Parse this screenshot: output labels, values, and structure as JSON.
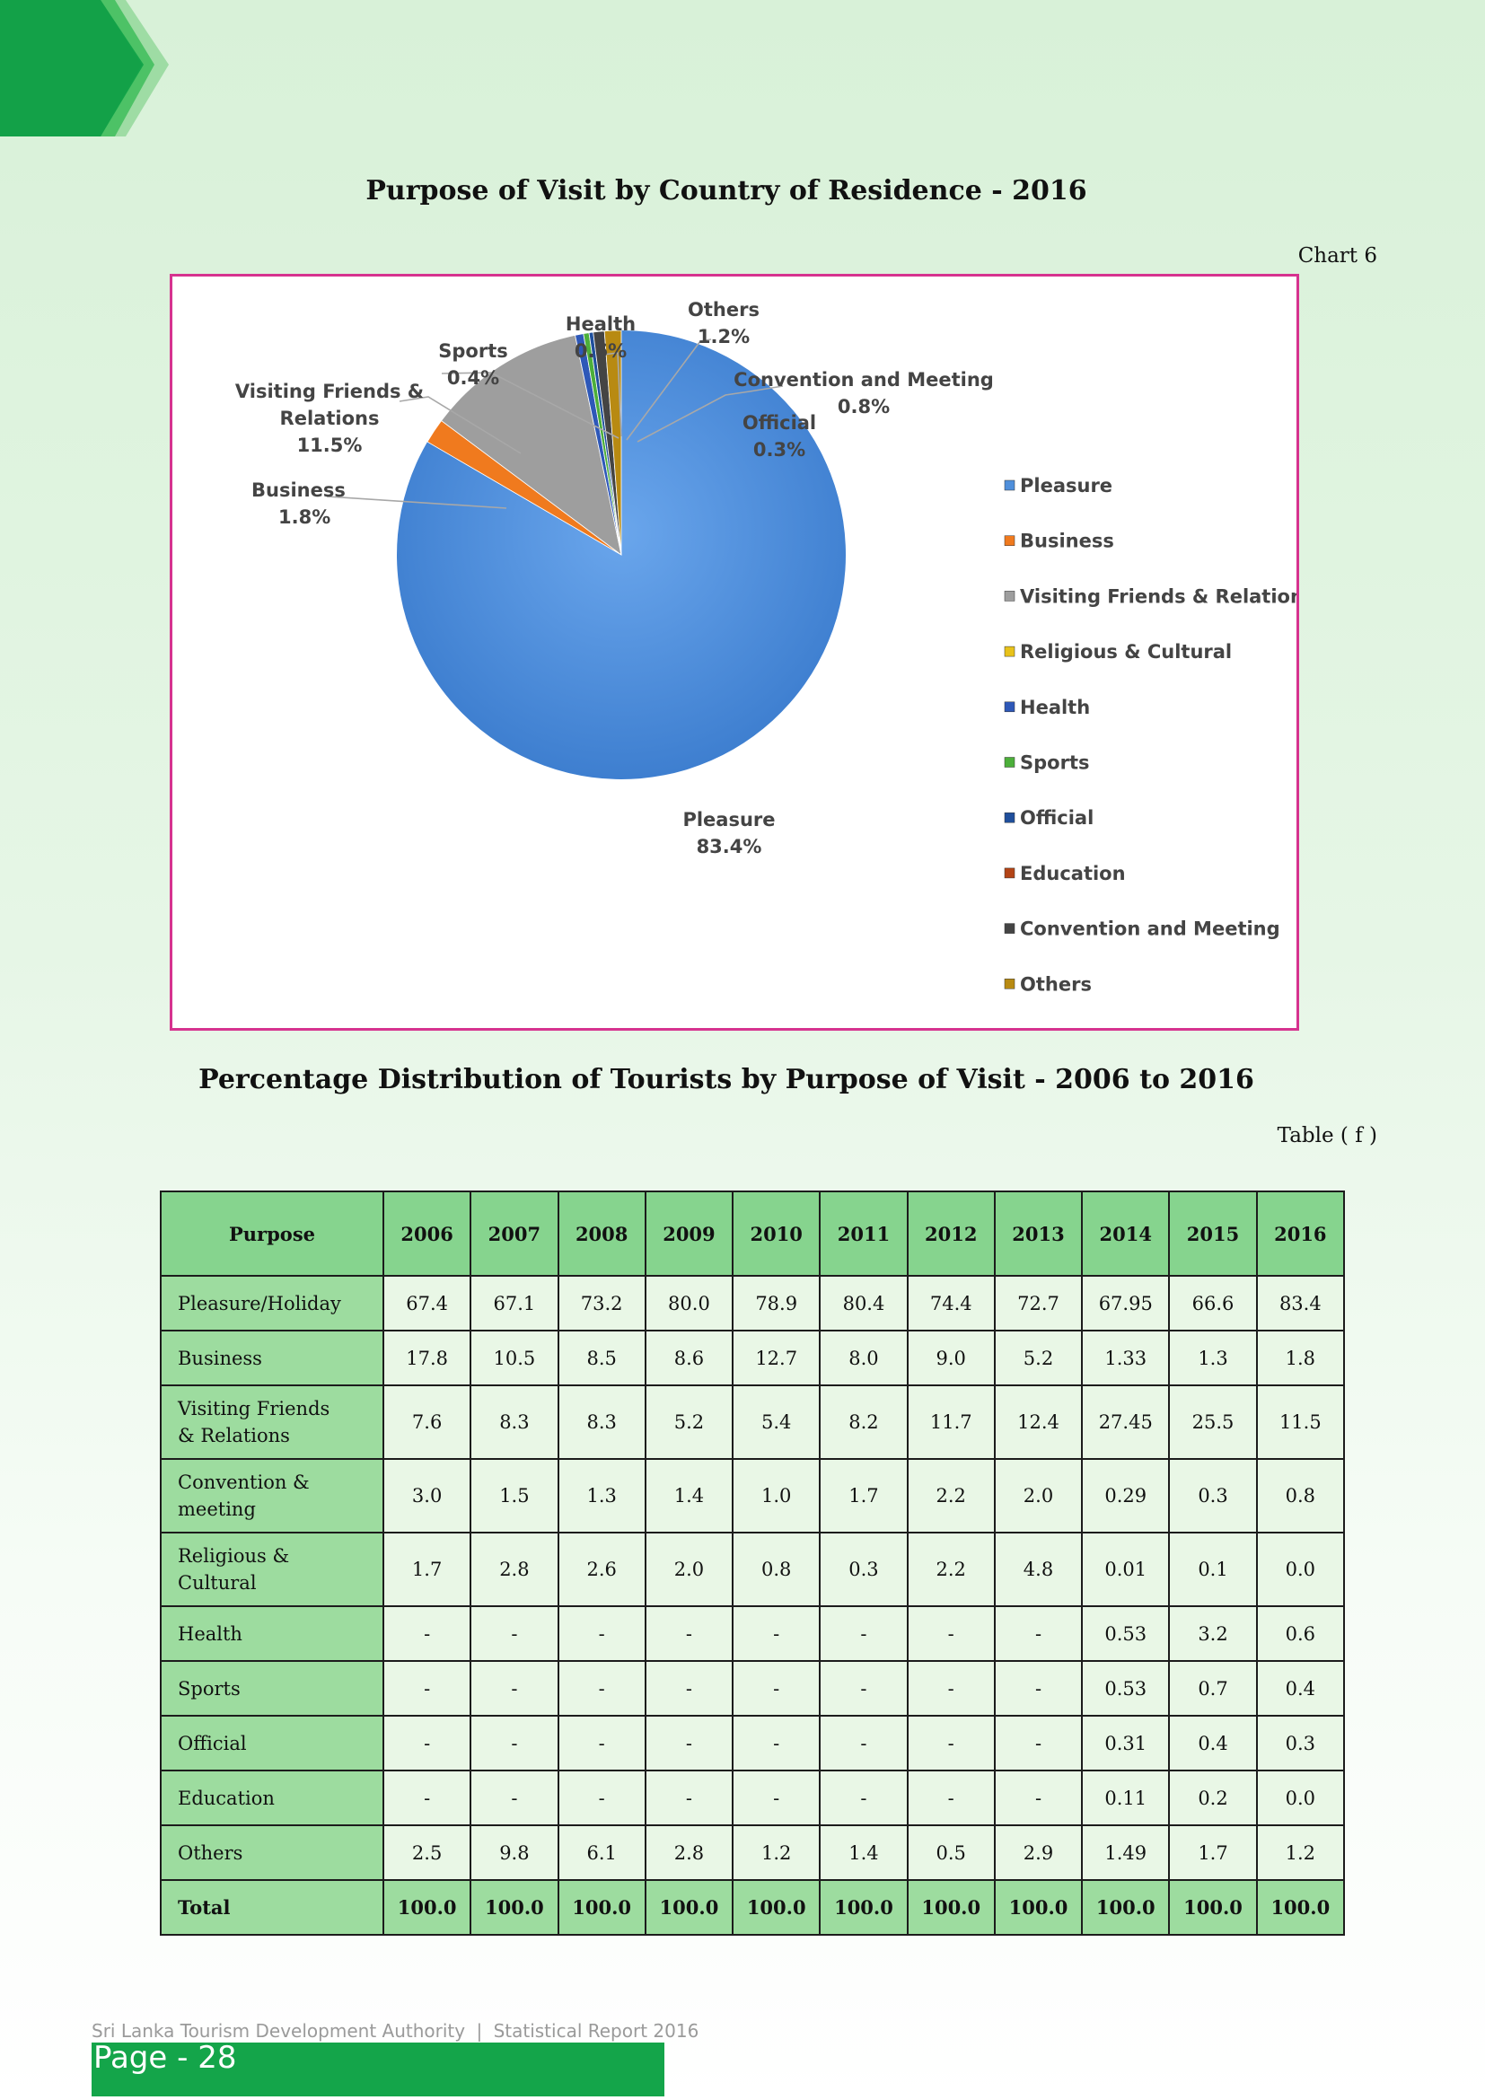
{
  "chart_title": "Purpose of Visit by Country of Residence - 2016",
  "chart_ref": "Chart 6",
  "chart_data": {
    "type": "pie",
    "title": "Purpose of Visit by Country of Residence - 2016",
    "slices": [
      {
        "name": "Pleasure",
        "value": 83.4,
        "label": "Pleasure",
        "pct": "83.4%",
        "color": "#4f8fdb"
      },
      {
        "name": "Business",
        "value": 1.8,
        "label": "Business",
        "pct": "1.8%",
        "color": "#f07a1e"
      },
      {
        "name": "Visiting Friends & Relations",
        "value": 11.5,
        "label": "Visiting Friends & Relations",
        "pct": "11.5%",
        "color": "#9e9e9e"
      },
      {
        "name": "Religious & Cultural",
        "value": 0.0,
        "label": "",
        "pct": "",
        "color": "#e8c21a"
      },
      {
        "name": "Health",
        "value": 0.6,
        "label": "Health",
        "pct": "0.6%",
        "color": "#2e58b8"
      },
      {
        "name": "Sports",
        "value": 0.4,
        "label": "Sports",
        "pct": "0.4%",
        "color": "#4caf3a"
      },
      {
        "name": "Official",
        "value": 0.3,
        "label": "Official",
        "pct": "0.3%",
        "color": "#1f4f9c"
      },
      {
        "name": "Education",
        "value": 0.0,
        "label": "",
        "pct": "",
        "color": "#b34416"
      },
      {
        "name": "Convention and Meeting",
        "value": 0.8,
        "label": "Convention and Meeting",
        "pct": "0.8%",
        "color": "#444444"
      },
      {
        "name": "Others",
        "value": 1.2,
        "label": "Others",
        "pct": "1.2%",
        "color": "#b88a12"
      }
    ],
    "legend_position": "right",
    "legend": [
      "Pleasure",
      "Business",
      "Visiting Friends & Relations",
      "Religious & Cultural",
      "Health",
      "Sports",
      "Official",
      "Education",
      "Convention and Meeting",
      "Others"
    ]
  },
  "table_title": "Percentage Distribution of Tourists by Purpose of Visit - 2006 to 2016",
  "table_ref": "Table ( f )",
  "table": {
    "header": [
      "Purpose",
      "2006",
      "2007",
      "2008",
      "2009",
      "2010",
      "2011",
      "2012",
      "2013",
      "2014",
      "2015",
      "2016"
    ],
    "rows": [
      {
        "label": [
          "Pleasure/Holiday"
        ],
        "values": [
          "67.4",
          "67.1",
          "73.2",
          "80.0",
          "78.9",
          "80.4",
          "74.4",
          "72.7",
          "67.95",
          "66.6",
          "83.4"
        ]
      },
      {
        "label": [
          "Business"
        ],
        "values": [
          "17.8",
          "10.5",
          "8.5",
          "8.6",
          "12.7",
          "8.0",
          "9.0",
          "5.2",
          "1.33",
          "1.3",
          "1.8"
        ]
      },
      {
        "label": [
          "Visiting Friends",
          "& Relations"
        ],
        "values": [
          "7.6",
          "8.3",
          "8.3",
          "5.2",
          "5.4",
          "8.2",
          "11.7",
          "12.4",
          "27.45",
          "25.5",
          "11.5"
        ]
      },
      {
        "label": [
          "Convention &",
          "meeting"
        ],
        "values": [
          "3.0",
          "1.5",
          "1.3",
          "1.4",
          "1.0",
          "1.7",
          "2.2",
          "2.0",
          "0.29",
          "0.3",
          "0.8"
        ]
      },
      {
        "label": [
          "Religious &",
          "Cultural"
        ],
        "values": [
          "1.7",
          "2.8",
          "2.6",
          "2.0",
          "0.8",
          "0.3",
          "2.2",
          "4.8",
          "0.01",
          "0.1",
          "0.0"
        ]
      },
      {
        "label": [
          "Health"
        ],
        "values": [
          "-",
          "-",
          "-",
          "-",
          "-",
          "-",
          "-",
          "-",
          "0.53",
          "3.2",
          "0.6"
        ]
      },
      {
        "label": [
          "Sports"
        ],
        "values": [
          "-",
          "-",
          "-",
          "-",
          "-",
          "-",
          "-",
          "-",
          "0.53",
          "0.7",
          "0.4"
        ]
      },
      {
        "label": [
          "Official"
        ],
        "values": [
          "-",
          "-",
          "-",
          "-",
          "-",
          "-",
          "-",
          "-",
          "0.31",
          "0.4",
          "0.3"
        ]
      },
      {
        "label": [
          "Education"
        ],
        "values": [
          "-",
          "-",
          "-",
          "-",
          "-",
          "-",
          "-",
          "-",
          "0.11",
          "0.2",
          "0.0"
        ]
      },
      {
        "label": [
          "Others"
        ],
        "values": [
          "2.5",
          "9.8",
          "6.1",
          "2.8",
          "1.2",
          "1.4",
          "0.5",
          "2.9",
          "1.49",
          "1.7",
          "1.2"
        ]
      }
    ],
    "total": {
      "label": [
        "Total"
      ],
      "values": [
        "100.0",
        "100.0",
        "100.0",
        "100.0",
        "100.0",
        "100.0",
        "100.0",
        "100.0",
        "100.0",
        "100.0",
        "100.0"
      ]
    }
  },
  "footer": {
    "org": "Sri Lanka Tourism Development Authority",
    "separator": "|",
    "report": "Statistical Report 2016",
    "page": "Page - 28"
  },
  "colors": {
    "accent_green": "#14a54a",
    "chart_border": "#d6338f"
  }
}
